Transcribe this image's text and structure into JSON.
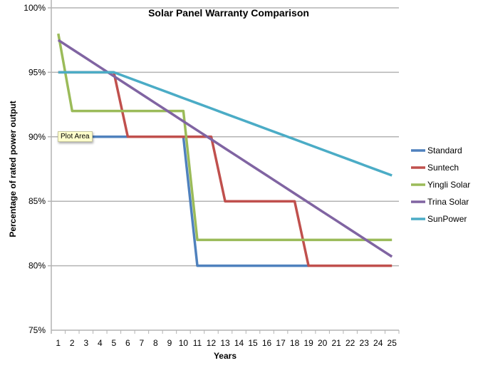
{
  "chart_data": {
    "type": "line",
    "title": "Solar Panel Warranty Comparison",
    "xlabel": "Years",
    "ylabel": "Percentage of rated power output",
    "x": [
      1,
      2,
      3,
      4,
      5,
      6,
      7,
      8,
      9,
      10,
      11,
      12,
      13,
      14,
      15,
      16,
      17,
      18,
      19,
      20,
      21,
      22,
      23,
      24,
      25
    ],
    "ylim": [
      75,
      100
    ],
    "yticks": [
      75,
      80,
      85,
      90,
      95,
      100
    ],
    "ytick_labels": [
      "75%",
      "80%",
      "85%",
      "90%",
      "95%",
      "100%"
    ],
    "grid": true,
    "legend_position": "right",
    "series": [
      {
        "name": "Standard",
        "color": "#4f81bd",
        "values": [
          90,
          90,
          90,
          90,
          90,
          90,
          90,
          90,
          90,
          90,
          80,
          80,
          80,
          80,
          80,
          80,
          80,
          80,
          80,
          null,
          null,
          null,
          null,
          null,
          null
        ]
      },
      {
        "name": "Suntech",
        "color": "#c0504d",
        "values": [
          95,
          95,
          95,
          95,
          95,
          90,
          90,
          90,
          90,
          90,
          90,
          90,
          85,
          85,
          85,
          85,
          85,
          85,
          80,
          80,
          80,
          80,
          80,
          80,
          80
        ]
      },
      {
        "name": "Yingli Solar",
        "color": "#9bbb59",
        "values": [
          98,
          92,
          92,
          92,
          92,
          92,
          92,
          92,
          92,
          92,
          82,
          82,
          82,
          82,
          82,
          82,
          82,
          82,
          82,
          82,
          82,
          82,
          82,
          82,
          82
        ]
      },
      {
        "name": "Trina Solar",
        "color": "#8064a2",
        "values": [
          97.5,
          96.8,
          96.1,
          95.4,
          94.7,
          94.0,
          93.3,
          92.6,
          91.9,
          91.2,
          90.5,
          89.8,
          89.1,
          88.4,
          87.7,
          87.0,
          86.3,
          85.6,
          84.9,
          84.2,
          83.5,
          82.8,
          82.1,
          81.4,
          80.7
        ]
      },
      {
        "name": "SunPower",
        "color": "#4bacc6",
        "values": [
          95,
          95,
          95,
          95,
          95,
          94.6,
          94.2,
          93.8,
          93.4,
          93.0,
          92.6,
          92.2,
          91.8,
          91.4,
          91.0,
          90.6,
          90.2,
          89.8,
          89.4,
          89.0,
          88.6,
          88.2,
          87.8,
          87.4,
          87.0
        ]
      }
    ]
  },
  "tooltip": "Plot Area"
}
